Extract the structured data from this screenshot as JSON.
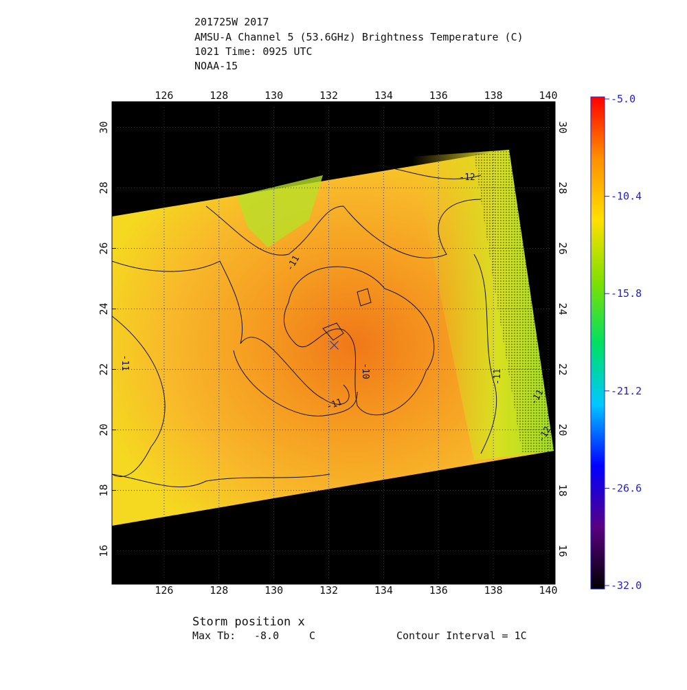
{
  "header": {
    "lines": [
      "201725W 2017",
      "AMSU-A Channel 5 (53.6GHz) Brightness Temperature (C)",
      "1021 Time: 0925 UTC",
      "NOAA-15"
    ]
  },
  "chart_data": {
    "type": "map",
    "xlim": [
      124.1,
      140.25
    ],
    "ylim": [
      14.9,
      30.85
    ],
    "xticks": [
      126,
      128,
      130,
      132,
      134,
      136,
      138,
      140
    ],
    "yticks": [
      16,
      18,
      20,
      22,
      24,
      26,
      28,
      30
    ],
    "grid": true,
    "storm_position": {
      "lon": 132.2,
      "lat": 22.8
    },
    "contour_labels": [
      "-12",
      "-11",
      "-11",
      "-11",
      "-11",
      "-10",
      "-11",
      "-12"
    ],
    "colorbar": {
      "ylim": [
        -32,
        -5
      ],
      "ticks": [
        {
          "value": -5,
          "label": "-5.0"
        },
        -10.4,
        -15.8,
        -21.2,
        -26.6,
        {
          "value": -32,
          "label": "-32.0"
        }
      ],
      "colors": [
        "#000000",
        "#5a0080",
        "#0000ff",
        "#00c8ff",
        "#00e060",
        "#80e000",
        "#ffe000",
        "#ff9000",
        "#ff0000"
      ]
    }
  },
  "footer": {
    "storm": "Storm position x",
    "max_label": "Max Tb:",
    "max_value": "-8.0",
    "max_unit": "C",
    "interval": "Contour Interval = 1C"
  }
}
